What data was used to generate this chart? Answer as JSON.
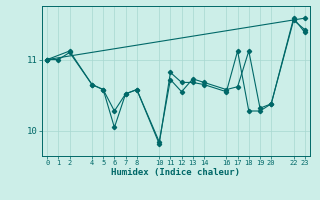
{
  "xlabel": "Humidex (Indice chaleur)",
  "bg_color": "#cceee8",
  "line_color": "#006868",
  "series": [
    {
      "x": [
        0,
        1,
        2,
        4,
        5,
        6,
        7,
        8,
        10,
        11,
        12,
        13,
        14,
        16,
        17,
        18,
        19,
        20,
        22,
        23
      ],
      "y": [
        11.0,
        11.0,
        11.1,
        10.65,
        10.58,
        10.28,
        10.52,
        10.58,
        9.85,
        10.72,
        10.55,
        10.73,
        10.68,
        10.58,
        10.62,
        11.12,
        10.32,
        10.38,
        11.55,
        11.42
      ]
    },
    {
      "x": [
        0,
        2,
        4,
        5,
        6,
        7,
        8,
        10,
        11,
        12,
        13,
        14,
        16,
        17,
        18,
        19,
        20,
        22,
        23
      ],
      "y": [
        11.0,
        11.12,
        10.65,
        10.58,
        10.05,
        10.52,
        10.58,
        9.82,
        10.82,
        10.68,
        10.68,
        10.65,
        10.55,
        11.12,
        10.28,
        10.28,
        10.38,
        11.58,
        11.38
      ]
    },
    {
      "x": [
        0,
        23
      ],
      "y": [
        11.0,
        11.58
      ]
    }
  ],
  "xlim": [
    -0.5,
    23.5
  ],
  "ylim": [
    9.65,
    11.75
  ],
  "yticks": [
    10,
    11
  ],
  "xticks": [
    0,
    1,
    2,
    4,
    5,
    6,
    7,
    8,
    10,
    11,
    12,
    13,
    14,
    16,
    17,
    18,
    19,
    20,
    22,
    23
  ]
}
